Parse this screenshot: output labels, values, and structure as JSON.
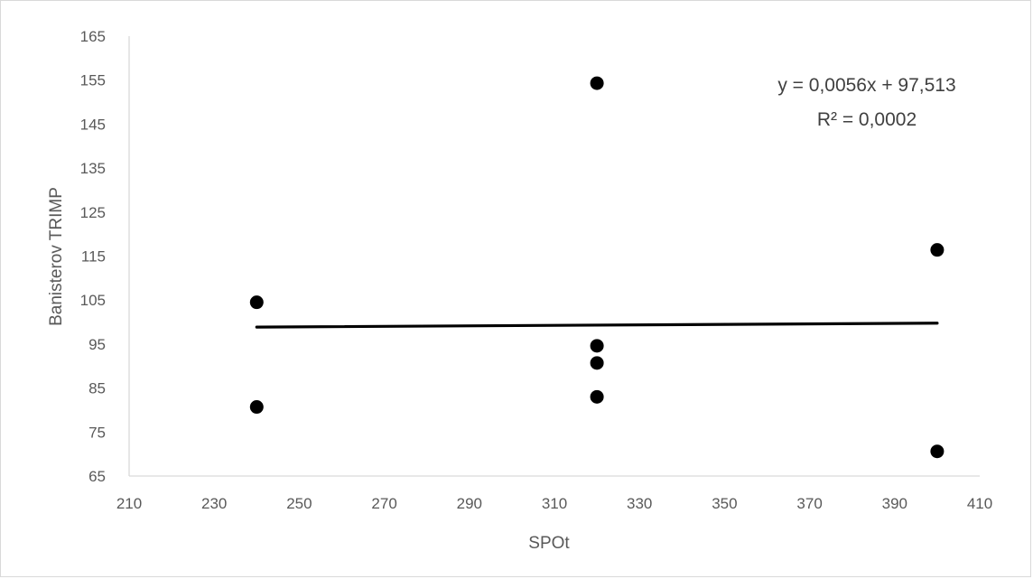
{
  "chart_data": {
    "type": "scatter",
    "xlabel": "SPOt",
    "ylabel": "Banisterov TRIMP",
    "xlim": [
      210,
      410
    ],
    "ylim": [
      65,
      165
    ],
    "x_ticks": [
      210,
      230,
      250,
      270,
      290,
      310,
      330,
      350,
      370,
      390,
      410
    ],
    "y_ticks": [
      65,
      75,
      85,
      95,
      105,
      115,
      125,
      135,
      145,
      155,
      165
    ],
    "points": [
      {
        "x": 240,
        "y": 104.5
      },
      {
        "x": 240,
        "y": 80.7
      },
      {
        "x": 320,
        "y": 154.3
      },
      {
        "x": 320,
        "y": 94.6
      },
      {
        "x": 320,
        "y": 90.7
      },
      {
        "x": 320,
        "y": 83.0
      },
      {
        "x": 400,
        "y": 116.4
      },
      {
        "x": 400,
        "y": 70.6
      }
    ],
    "trendline": {
      "slope": 0.0056,
      "intercept": 97.513
    },
    "equation_text": "y = 0,0056x + 97,513",
    "r2_text": "R² = 0,0002",
    "grid": false,
    "legend": "none",
    "colors": {
      "marker": "#000000",
      "axis": "#d9d9d9",
      "text": "#595959"
    }
  }
}
